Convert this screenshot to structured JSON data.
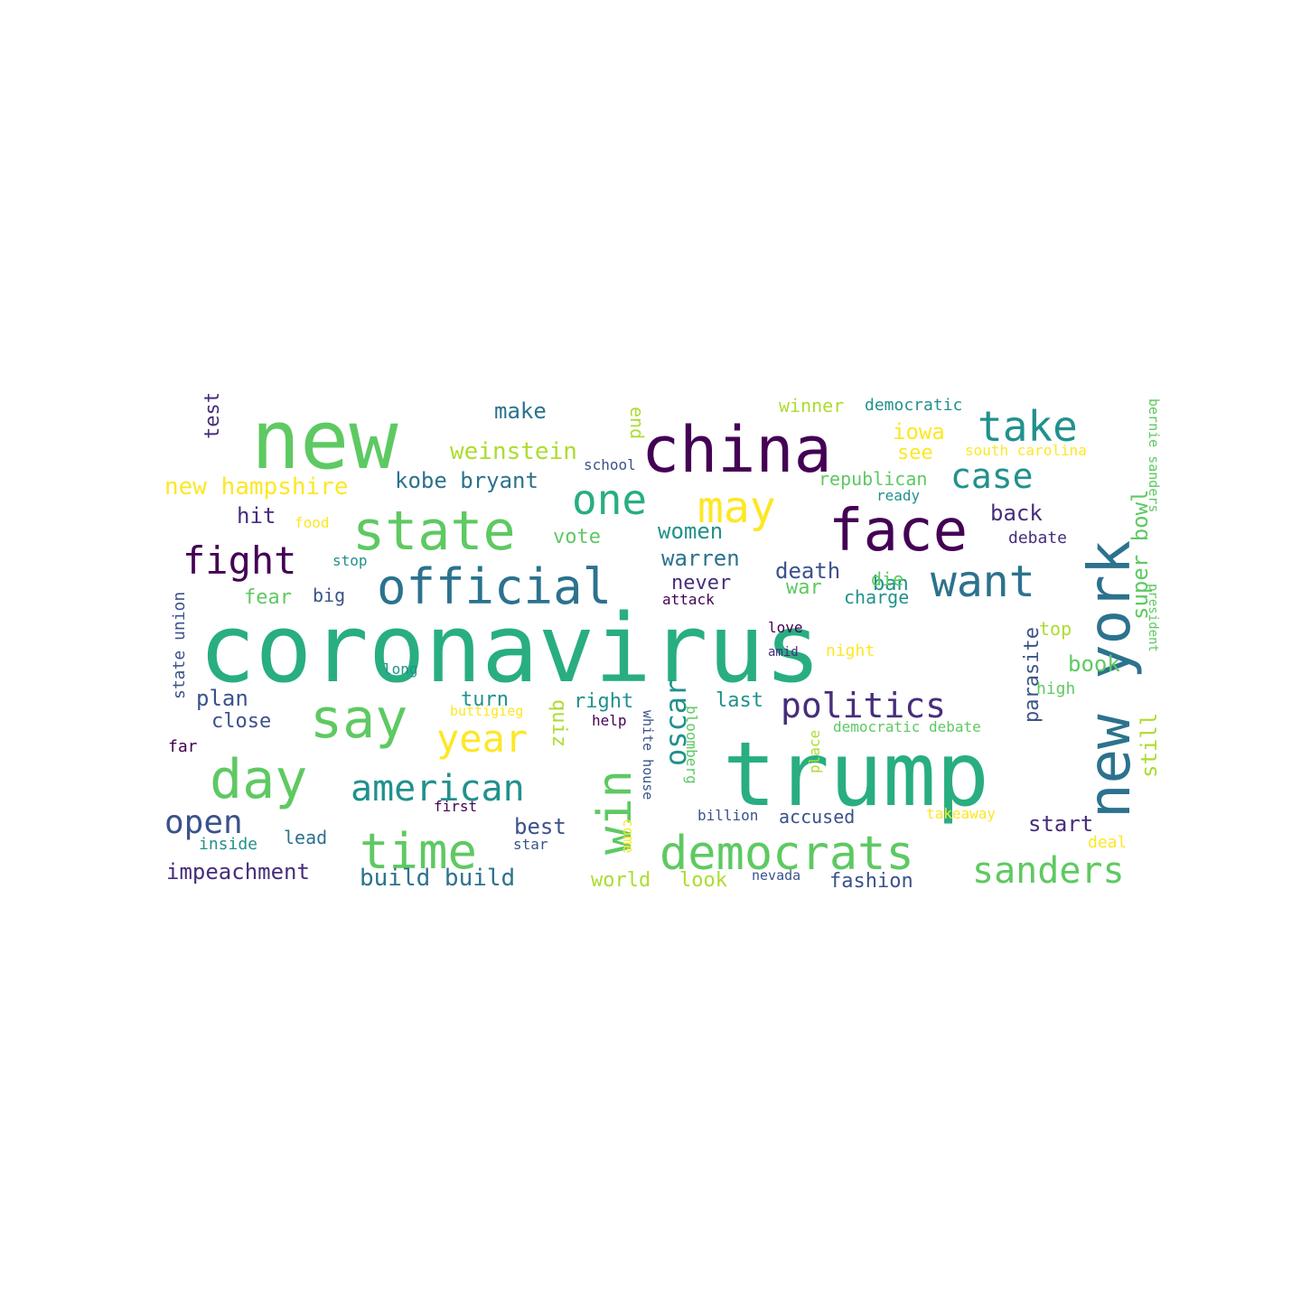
{
  "palette": {
    "dark_purple": "#440154",
    "purple": "#472d7b",
    "indigo": "#3b528b",
    "blue": "#2c728e",
    "teal": "#21918c",
    "green_teal": "#28ae80",
    "green": "#5ec962",
    "light_green": "#addc30",
    "yellow": "#fde725"
  },
  "words": [
    {
      "text": "coronavirus",
      "color": "green_teal"
    },
    {
      "text": "trump",
      "color": "green_teal"
    },
    {
      "text": "new",
      "color": "green"
    },
    {
      "text": "china",
      "color": "dark_purple"
    },
    {
      "text": "face",
      "color": "dark_purple"
    },
    {
      "text": "new york",
      "color": "blue"
    },
    {
      "text": "state",
      "color": "green"
    },
    {
      "text": "say",
      "color": "green"
    },
    {
      "text": "official",
      "color": "blue"
    },
    {
      "text": "day",
      "color": "green"
    },
    {
      "text": "time",
      "color": "green"
    },
    {
      "text": "democrats",
      "color": "green"
    },
    {
      "text": "win",
      "color": "green"
    },
    {
      "text": "may",
      "color": "yellow"
    },
    {
      "text": "want",
      "color": "blue"
    },
    {
      "text": "take",
      "color": "teal"
    },
    {
      "text": "one",
      "color": "green_teal"
    },
    {
      "text": "american",
      "color": "teal"
    },
    {
      "text": "politics",
      "color": "purple"
    },
    {
      "text": "fight",
      "color": "dark_purple"
    },
    {
      "text": "year",
      "color": "yellow"
    },
    {
      "text": "sanders",
      "color": "green"
    },
    {
      "text": "case",
      "color": "teal"
    },
    {
      "text": "open",
      "color": "indigo"
    },
    {
      "text": "oscar",
      "color": "teal"
    },
    {
      "text": "weinstein",
      "color": "light_green"
    },
    {
      "text": "new hampshire",
      "color": "yellow"
    },
    {
      "text": "kobe bryant",
      "color": "blue"
    },
    {
      "text": "make",
      "color": "blue"
    },
    {
      "text": "impeachment",
      "color": "purple"
    },
    {
      "text": "build build",
      "color": "blue"
    },
    {
      "text": "super bowl",
      "color": "green"
    },
    {
      "text": "still",
      "color": "light_green"
    },
    {
      "text": "book",
      "color": "green"
    },
    {
      "text": "start",
      "color": "purple"
    },
    {
      "text": "fashion",
      "color": "indigo"
    },
    {
      "text": "world",
      "color": "light_green"
    },
    {
      "text": "look",
      "color": "light_green"
    },
    {
      "text": "best",
      "color": "indigo"
    },
    {
      "text": "women",
      "color": "teal"
    },
    {
      "text": "warren",
      "color": "blue"
    },
    {
      "text": "death",
      "color": "indigo"
    },
    {
      "text": "back",
      "color": "purple"
    },
    {
      "text": "iowa",
      "color": "yellow"
    },
    {
      "text": "see",
      "color": "yellow"
    },
    {
      "text": "parasite",
      "color": "indigo"
    },
    {
      "text": "quiz",
      "color": "light_green"
    },
    {
      "text": "test",
      "color": "purple"
    },
    {
      "text": "hit",
      "color": "purple"
    },
    {
      "text": "plan",
      "color": "indigo"
    },
    {
      "text": "close",
      "color": "indigo"
    },
    {
      "text": "turn",
      "color": "teal"
    },
    {
      "text": "right",
      "color": "teal"
    },
    {
      "text": "last",
      "color": "teal"
    },
    {
      "text": "end",
      "color": "light_green"
    },
    {
      "text": "ban",
      "color": "teal"
    },
    {
      "text": "die",
      "color": "green"
    },
    {
      "text": "war",
      "color": "green"
    },
    {
      "text": "charge",
      "color": "teal"
    },
    {
      "text": "vote",
      "color": "green"
    },
    {
      "text": "never",
      "color": "purple"
    },
    {
      "text": "fear",
      "color": "green"
    },
    {
      "text": "big",
      "color": "indigo"
    },
    {
      "text": "accused",
      "color": "indigo"
    },
    {
      "text": "lead",
      "color": "blue"
    },
    {
      "text": "inside",
      "color": "teal"
    },
    {
      "text": "top",
      "color": "light_green"
    },
    {
      "text": "state union",
      "color": "indigo"
    },
    {
      "text": "winner",
      "color": "light_green"
    },
    {
      "text": "democratic",
      "color": "teal"
    },
    {
      "text": "south carolina",
      "color": "yellow"
    },
    {
      "text": "republican",
      "color": "green"
    },
    {
      "text": "debate",
      "color": "purple"
    },
    {
      "text": "bernie sanders",
      "color": "green"
    },
    {
      "text": "school",
      "color": "indigo"
    },
    {
      "text": "ready",
      "color": "teal"
    },
    {
      "text": "food",
      "color": "yellow"
    },
    {
      "text": "stop",
      "color": "teal"
    },
    {
      "text": "attack",
      "color": "dark_purple"
    },
    {
      "text": "love",
      "color": "dark_purple"
    },
    {
      "text": "amid",
      "color": "purple"
    },
    {
      "text": "night",
      "color": "yellow"
    },
    {
      "text": "long",
      "color": "teal"
    },
    {
      "text": "high",
      "color": "green"
    },
    {
      "text": "president",
      "color": "green"
    },
    {
      "text": "buttigieg",
      "color": "yellow"
    },
    {
      "text": "help",
      "color": "dark_purple"
    },
    {
      "text": "democratic debate",
      "color": "green"
    },
    {
      "text": "far",
      "color": "dark_purple"
    },
    {
      "text": "first",
      "color": "dark_purple"
    },
    {
      "text": "white house",
      "color": "indigo"
    },
    {
      "text": "bloomberg",
      "color": "green"
    },
    {
      "text": "place",
      "color": "light_green"
    },
    {
      "text": "billion",
      "color": "indigo"
    },
    {
      "text": "takeaway",
      "color": "yellow"
    },
    {
      "text": "star",
      "color": "indigo"
    },
    {
      "text": "come",
      "color": "yellow"
    },
    {
      "text": "deal",
      "color": "yellow"
    },
    {
      "text": "nevada",
      "color": "indigo"
    }
  ]
}
